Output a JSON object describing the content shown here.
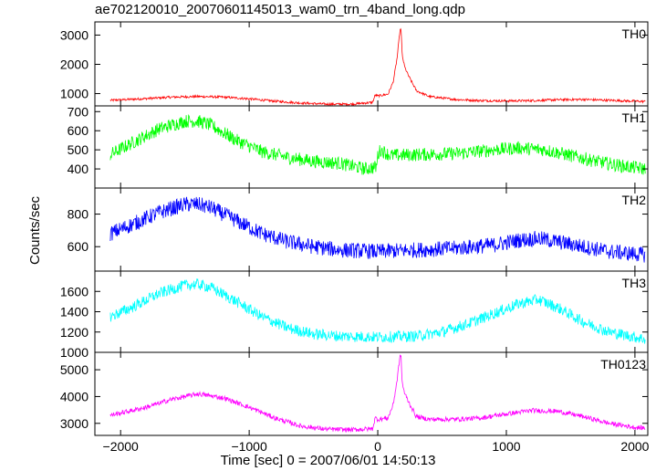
{
  "title": "ae702120010_20070601145013_wam0_trn_4band_long.qdp",
  "ylabel": "Counts/sec",
  "xlabel": "Time [sec] 0 = 2007/06/01 14:50:13",
  "chart_data": {
    "type": "line",
    "title": "ae702120010_20070601145013_wam0_trn_4band_long.qdp",
    "xlabel": "Time [sec] 0 = 2007/06/01 14:50:13",
    "ylabel": "Counts/sec",
    "xlim": [
      -2200,
      2100
    ],
    "x_ticks": [
      -2000,
      -1000,
      0,
      1000,
      2000
    ],
    "x_tick_labels": [
      "−2000",
      "−1000",
      "0",
      "1000",
      "2000"
    ],
    "panels": [
      {
        "name": "TH0",
        "color": "#ff0000",
        "ylim": [
          580,
          3450
        ],
        "y_ticks": [
          1000,
          2000,
          3000
        ],
        "y_tick_labels": [
          "1000",
          "2000",
          "3000"
        ],
        "noise": 25,
        "x": [
          -2080,
          -1800,
          -1600,
          -1400,
          -1200,
          -1000,
          -800,
          -600,
          -400,
          -200,
          -40,
          -20,
          0,
          80,
          120,
          150,
          170,
          180,
          190,
          210,
          240,
          300,
          400,
          600,
          800,
          1000,
          1200,
          1400,
          1600,
          1800,
          2000,
          2080
        ],
        "values": [
          770,
          830,
          880,
          900,
          880,
          820,
          740,
          680,
          640,
          640,
          700,
          950,
          920,
          980,
          1400,
          2200,
          3050,
          3300,
          2300,
          1900,
          1600,
          1100,
          900,
          800,
          760,
          750,
          760,
          790,
          800,
          770,
          740,
          730
        ]
      },
      {
        "name": "TH1",
        "color": "#00ff00",
        "ylim": [
          300,
          730
        ],
        "y_ticks": [
          400,
          500,
          600,
          700
        ],
        "y_tick_labels": [
          "400",
          "500",
          "600",
          "700"
        ],
        "noise": 22,
        "x": [
          -2080,
          -1900,
          -1700,
          -1500,
          -1400,
          -1300,
          -1100,
          -900,
          -700,
          -500,
          -300,
          -100,
          -10,
          0,
          20,
          100,
          300,
          600,
          900,
          1100,
          1300,
          1500,
          1700,
          1900,
          2080
        ],
        "values": [
          475,
          540,
          610,
          650,
          650,
          630,
          550,
          490,
          460,
          440,
          430,
          400,
          410,
          470,
          500,
          470,
          475,
          480,
          500,
          510,
          500,
          470,
          440,
          415,
          400
        ]
      },
      {
        "name": "TH2",
        "color": "#0000ff",
        "ylim": [
          450,
          960
        ],
        "y_ticks": [
          600,
          800
        ],
        "y_tick_labels": [
          "600",
          "800"
        ],
        "noise": 30,
        "x": [
          -2080,
          -1900,
          -1700,
          -1500,
          -1400,
          -1300,
          -1100,
          -900,
          -700,
          -500,
          -300,
          0,
          300,
          600,
          900,
          1100,
          1250,
          1400,
          1600,
          1800,
          2080
        ],
        "values": [
          680,
          740,
          810,
          860,
          860,
          840,
          760,
          680,
          630,
          600,
          580,
          570,
          580,
          590,
          610,
          640,
          650,
          630,
          600,
          570,
          550
        ]
      },
      {
        "name": "TH3",
        "color": "#00ffff",
        "ylim": [
          1000,
          1800
        ],
        "y_ticks": [
          1000,
          1200,
          1400,
          1600
        ],
        "y_tick_labels": [
          "1000",
          "1200",
          "1400",
          "1600"
        ],
        "noise": 35,
        "x": [
          -2080,
          -1900,
          -1700,
          -1500,
          -1400,
          -1300,
          -1100,
          -900,
          -700,
          -500,
          -300,
          0,
          300,
          500,
          700,
          900,
          1100,
          1250,
          1400,
          1600,
          1800,
          2080
        ],
        "values": [
          1350,
          1450,
          1580,
          1660,
          1670,
          1640,
          1500,
          1350,
          1240,
          1180,
          1160,
          1150,
          1160,
          1200,
          1280,
          1380,
          1480,
          1520,
          1440,
          1300,
          1200,
          1130
        ]
      },
      {
        "name": "TH0123",
        "color": "#ff00ff",
        "ylim": [
          2550,
          5650
        ],
        "y_ticks": [
          3000,
          4000,
          5000
        ],
        "y_tick_labels": [
          "3000",
          "4000",
          "5000"
        ],
        "noise": 55,
        "x": [
          -2080,
          -1800,
          -1600,
          -1400,
          -1200,
          -1000,
          -800,
          -600,
          -400,
          -200,
          -40,
          -20,
          0,
          80,
          120,
          150,
          170,
          180,
          190,
          210,
          240,
          300,
          400,
          600,
          800,
          1000,
          1200,
          1400,
          1600,
          1800,
          2000,
          2080
        ],
        "values": [
          3300,
          3600,
          3900,
          4100,
          3950,
          3600,
          3200,
          2900,
          2780,
          2760,
          2800,
          3200,
          3150,
          3200,
          3700,
          4600,
          5400,
          5600,
          4500,
          4100,
          3800,
          3250,
          3150,
          3150,
          3200,
          3350,
          3480,
          3450,
          3250,
          3000,
          2850,
          2820
        ]
      }
    ]
  }
}
